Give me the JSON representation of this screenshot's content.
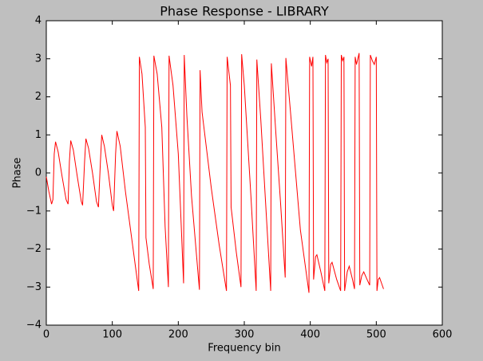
{
  "chart_data": {
    "type": "line",
    "title": "Phase Response - LIBRARY",
    "x_label": "Frequency bin",
    "y_label": "Phase",
    "color": "#ff0000",
    "grid": false,
    "xlim": [
      0,
      600
    ],
    "xticks": [
      0,
      100,
      200,
      300,
      400,
      500,
      600
    ],
    "ylim": [
      -4,
      4
    ],
    "yticks": [
      {
        "value": -4,
        "label": "−4"
      },
      {
        "value": -3,
        "label": "−3"
      },
      {
        "value": -2,
        "label": "−2"
      },
      {
        "value": -1,
        "label": "−1"
      },
      0,
      1,
      2,
      3,
      4
    ],
    "x": [
      0,
      4,
      8,
      10,
      12,
      14,
      18,
      24,
      30,
      33,
      35,
      37,
      41,
      47,
      53,
      55,
      58,
      60,
      64,
      70,
      76,
      79,
      82,
      84,
      88,
      94,
      100,
      102,
      105,
      107,
      112,
      120,
      130,
      140,
      141,
      145,
      150,
      151,
      156,
      162,
      163,
      168,
      175,
      180,
      185,
      186,
      192,
      200,
      208,
      209,
      213,
      220,
      232,
      233,
      236,
      250,
      262,
      273,
      274,
      279,
      280,
      288,
      295,
      296,
      300,
      310,
      318,
      319,
      325,
      333,
      340,
      341,
      348,
      355,
      362,
      363,
      370,
      385,
      398,
      399,
      402,
      404,
      405,
      408,
      410,
      416,
      422,
      423,
      425,
      427,
      428,
      431,
      433,
      440,
      446,
      447,
      449,
      451,
      452,
      456,
      459,
      464,
      467,
      468,
      470,
      474,
      475,
      478,
      481,
      486,
      490,
      491,
      494,
      497,
      500,
      501,
      503,
      505,
      508,
      511
    ],
    "values": [
      -0.1,
      -0.5,
      -0.82,
      -0.7,
      0.5,
      0.82,
      0.55,
      -0.1,
      -0.7,
      -0.82,
      0.3,
      0.85,
      0.6,
      -0.1,
      -0.75,
      -0.85,
      0.3,
      0.9,
      0.65,
      0,
      -0.75,
      -0.9,
      0.3,
      1.0,
      0.7,
      0,
      -0.85,
      -1.0,
      0.5,
      1.1,
      0.7,
      -0.5,
      -1.8,
      -3.1,
      3.05,
      2.6,
      1.2,
      -1.7,
      -2.4,
      -3.05,
      3.08,
      2.6,
      1.2,
      -1.4,
      -3.0,
      3.08,
      2.3,
      0.5,
      -2.9,
      3.1,
      1.5,
      -0.6,
      -3.07,
      2.7,
      1.6,
      -0.4,
      -1.9,
      -3.1,
      3.05,
      2.3,
      -0.9,
      -2.1,
      -3.0,
      3.12,
      2.3,
      -0.6,
      -3.1,
      2.98,
      1.4,
      -1.0,
      -3.1,
      2.88,
      1.0,
      -0.8,
      -2.75,
      3.02,
      1.6,
      -1.5,
      -3.15,
      3.05,
      2.8,
      3.05,
      -2.8,
      -2.2,
      -2.15,
      -2.6,
      -3.1,
      3.1,
      2.9,
      3.0,
      -2.9,
      -2.4,
      -2.35,
      -2.8,
      -3.1,
      3.1,
      2.95,
      3.05,
      -3.1,
      -2.6,
      -2.45,
      -2.8,
      -3.05,
      3.05,
      2.85,
      3.15,
      -2.95,
      -2.7,
      -2.6,
      -2.8,
      -2.95,
      3.1,
      2.95,
      2.85,
      3.05,
      -3.1,
      -2.8,
      -2.75,
      -2.9,
      -3.05
    ]
  }
}
